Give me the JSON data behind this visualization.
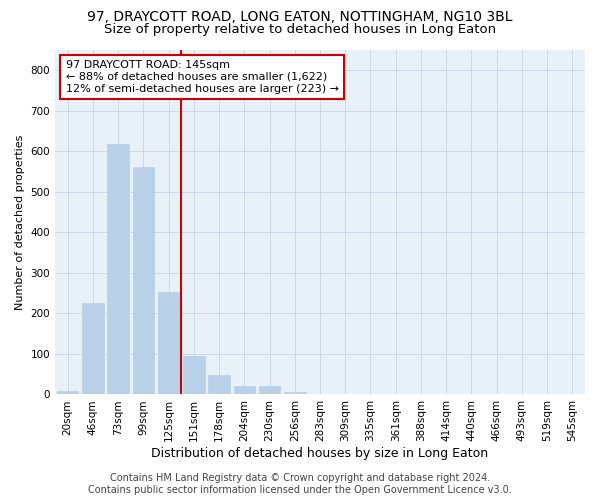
{
  "title": "97, DRAYCOTT ROAD, LONG EATON, NOTTINGHAM, NG10 3BL",
  "subtitle": "Size of property relative to detached houses in Long Eaton",
  "xlabel": "Distribution of detached houses by size in Long Eaton",
  "ylabel": "Number of detached properties",
  "bar_labels": [
    "20sqm",
    "46sqm",
    "73sqm",
    "99sqm",
    "125sqm",
    "151sqm",
    "178sqm",
    "204sqm",
    "230sqm",
    "256sqm",
    "283sqm",
    "309sqm",
    "335sqm",
    "361sqm",
    "388sqm",
    "414sqm",
    "440sqm",
    "466sqm",
    "493sqm",
    "519sqm",
    "545sqm"
  ],
  "bar_values": [
    8,
    225,
    617,
    562,
    252,
    95,
    48,
    22,
    22,
    5,
    2,
    0,
    0,
    0,
    0,
    0,
    0,
    0,
    0,
    0,
    0
  ],
  "bar_color": "#b8d0e8",
  "bar_edgecolor": "#b8d0e8",
  "property_line_index": 5,
  "property_line_color": "#cc0000",
  "annotation_line1": "97 DRAYCOTT ROAD: 145sqm",
  "annotation_line2": "← 88% of detached houses are smaller (1,622)",
  "annotation_line3": "12% of semi-detached houses are larger (223) →",
  "annotation_box_color": "#ffffff",
  "annotation_box_edgecolor": "#cc0000",
  "ylim": [
    0,
    850
  ],
  "yticks": [
    0,
    100,
    200,
    300,
    400,
    500,
    600,
    700,
    800
  ],
  "grid_color": "#ccd8e8",
  "background_color": "#e8f0f8",
  "footer_text": "Contains HM Land Registry data © Crown copyright and database right 2024.\nContains public sector information licensed under the Open Government Licence v3.0.",
  "title_fontsize": 10,
  "subtitle_fontsize": 9.5,
  "xlabel_fontsize": 9,
  "ylabel_fontsize": 8,
  "tick_fontsize": 7.5,
  "annotation_fontsize": 8,
  "footer_fontsize": 7
}
